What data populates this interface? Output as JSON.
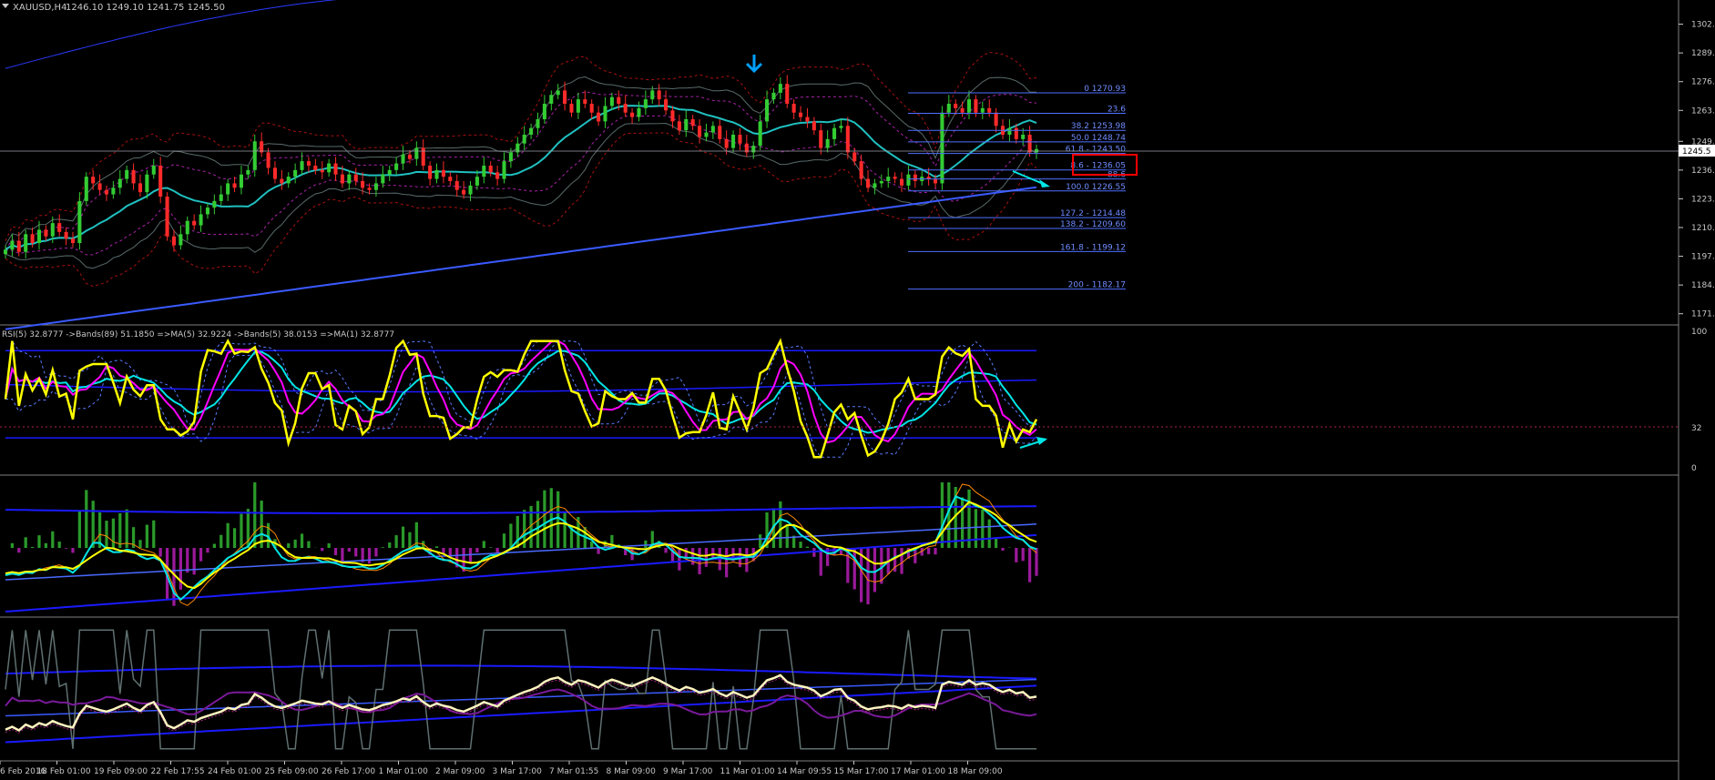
{
  "header": {
    "symbol": "XAUUSD,H4",
    "ohlc": "1246.10 1249.10 1241.75 1245.50"
  },
  "colors": {
    "bull": "#33cc33",
    "bear": "#ff2a2a",
    "fib": "#4f6fff",
    "rsi": "#ffff00",
    "rsi_ma": "#ff00ff",
    "rsi_bands_mid": "#00e5e5",
    "bands": "#1a1aff",
    "grid": "#808080",
    "marker": "#00a0ff",
    "highlight": "#ff0000"
  },
  "price_panel": {
    "y_ticks": [
      "1302.",
      "1289.",
      "1276.",
      "1263.",
      "1249.",
      "1236.",
      "1223.",
      "1210.",
      "1197.",
      "1184.",
      "1171."
    ],
    "y_values": [
      1302,
      1289,
      1276,
      1263,
      1249,
      1236,
      1223,
      1210,
      1197,
      1184,
      1171
    ],
    "current_price": "1245.5",
    "fib_levels": [
      {
        "label": "0 1270.93",
        "value": 1270.93
      },
      {
        "label": "23.6",
        "value": 1261.7
      },
      {
        "label": "38.2 1253.98",
        "value": 1253.98
      },
      {
        "label": "50.0 1248.74",
        "value": 1248.74
      },
      {
        "label": "61.8 - 1243.50",
        "value": 1243.5
      },
      {
        "label": "8.6 - 1236.05",
        "value": 1236.05
      },
      {
        "label": "88.6",
        "value": 1232.0
      },
      {
        "label": "100.0 1226.55",
        "value": 1226.55
      },
      {
        "label": "127.2 - 1214.48",
        "value": 1214.48
      },
      {
        "label": "138.2 - 1209.60",
        "value": 1209.6
      },
      {
        "label": "161.8 - 1199.12",
        "value": 1199.12
      },
      {
        "label": "200 - 1182.17",
        "value": 1182.17
      }
    ]
  },
  "rsi_panel": {
    "legend": "RSI(5) 32.8777 ->Bands(89) 51.1850 =>MA(5) 32.9224 ->Bands(5) 38.0153 =>MA(1) 32.8777",
    "y_ticks": [
      "100",
      "32",
      "0"
    ]
  },
  "x_axis": {
    "labels": [
      "6 Feb 2016",
      "18 Feb 01:00",
      "19 Feb 09:00",
      "22 Feb 17:55",
      "24 Feb 01:00",
      "25 Feb 09:00",
      "26 Feb 17:00",
      "1 Mar 01:00",
      "2 Mar 09:00",
      "3 Mar 17:00",
      "7 Mar 01:55",
      "8 Mar 09:00",
      "9 Mar 17:00",
      "11 Mar 01:00",
      "14 Mar 09:55",
      "15 Mar 17:00",
      "17 Mar 01:00",
      "18 Mar 09:00"
    ]
  },
  "chart_data": {
    "type": "candlestick",
    "title": "XAUUSD,H4",
    "ylim": [
      1168,
      1308
    ],
    "closes": [
      1200,
      1204,
      1199,
      1207,
      1203,
      1209,
      1206,
      1212,
      1208,
      1205,
      1203,
      1222,
      1233,
      1230,
      1227,
      1225,
      1228,
      1232,
      1236,
      1230,
      1226,
      1234,
      1238,
      1224,
      1206,
      1202,
      1207,
      1213,
      1211,
      1216,
      1219,
      1222,
      1225,
      1230,
      1228,
      1234,
      1236,
      1249,
      1244,
      1237,
      1232,
      1230,
      1233,
      1236,
      1240,
      1238,
      1236,
      1235,
      1239,
      1234,
      1230,
      1234,
      1231,
      1228,
      1227,
      1230,
      1234,
      1236,
      1239,
      1243,
      1241,
      1246,
      1238,
      1232,
      1236,
      1233,
      1231,
      1227,
      1225,
      1229,
      1233,
      1238,
      1235,
      1232,
      1240,
      1244,
      1248,
      1252,
      1255,
      1259,
      1266,
      1270,
      1272,
      1266,
      1262,
      1268,
      1266,
      1262,
      1258,
      1265,
      1269,
      1266,
      1262,
      1260,
      1264,
      1268,
      1272,
      1268,
      1263,
      1258,
      1254,
      1259,
      1256,
      1251,
      1253,
      1256,
      1250,
      1246,
      1252,
      1248,
      1244,
      1247,
      1258,
      1268,
      1271,
      1275,
      1266,
      1262,
      1260,
      1258,
      1254,
      1246,
      1250,
      1255,
      1256,
      1244,
      1240,
      1232,
      1228,
      1230,
      1231,
      1233,
      1232,
      1229,
      1234,
      1231,
      1233,
      1232,
      1230,
      1262,
      1266,
      1264,
      1262,
      1268,
      1262,
      1264,
      1262,
      1256,
      1252,
      1255,
      1250,
      1252,
      1244,
      1245.5
    ]
  }
}
